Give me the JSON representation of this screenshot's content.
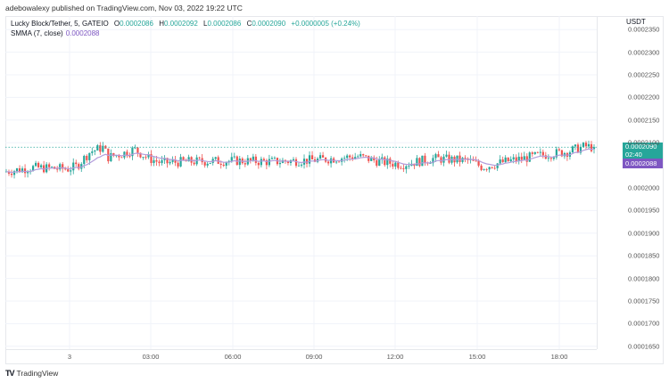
{
  "publisher_line": "adebowalexy published on TradingView.com, Nov 03, 2022 19:22 UTC",
  "legend": {
    "symbol": "Lucky Block/Tether, 5, GATEIO",
    "open_label": "O",
    "open": "0.0002086",
    "high_label": "H",
    "high": "0.0002092",
    "low_label": "L",
    "low": "0.0002086",
    "close_label": "C",
    "close": "0.0002090",
    "change": "+0.0000005 (+0.24%)",
    "indicator": "SMMA (7, close)",
    "indicator_value": "0.0002088"
  },
  "price_axis": {
    "unit": "USDT",
    "labels": [
      "0.0002350",
      "0.0002300",
      "0.0002250",
      "0.0002200",
      "0.0002150",
      "0.0002100",
      "0.0002000",
      "0.0001950",
      "0.0001900",
      "0.0001850",
      "0.0001800",
      "0.0001750",
      "0.0001700",
      "0.0001650"
    ],
    "close_badge": "0.0002090",
    "countdown": "02:40",
    "smma_badge": "0.0002088"
  },
  "time_axis": {
    "labels": [
      "3",
      "03:00",
      "06:00",
      "09:00",
      "12:00",
      "15:00",
      "18:00"
    ]
  },
  "footer": {
    "brand": "TradingView",
    "logo": "TV"
  },
  "colors": {
    "up": "#26a69a",
    "down": "#ef5350",
    "smma": "#b39ddb",
    "close_line": "#26a69a",
    "grid": "#f0f3fa"
  },
  "chart_data": {
    "type": "candlestick",
    "title": "Lucky Block/Tether, 5, GATEIO",
    "xlabel": "",
    "ylabel": "USDT",
    "ylim": [
      0.000164,
      0.000236
    ],
    "x_ticks": [
      "3",
      "03:00",
      "06:00",
      "09:00",
      "12:00",
      "15:00",
      "18:00"
    ],
    "y_ticks": [
      0.000165,
      0.00017,
      0.000175,
      0.00018,
      0.000185,
      0.00019,
      0.000195,
      0.0002,
      0.000205,
      0.00021,
      0.000215,
      0.00022,
      0.000225,
      0.00023,
      0.000235
    ],
    "grid": true,
    "last": {
      "open": 0.0002086,
      "high": 0.0002092,
      "low": 0.0002086,
      "close": 0.000209,
      "change": 5e-07,
      "change_pct": 0.24
    },
    "smma": {
      "period": 7,
      "source": "close",
      "last": 0.0002088
    },
    "approx_series": {
      "description": "Approximate closes read from pixel positions, ~5-min candles",
      "segments": [
        {
          "time": "00:00-01:00",
          "range": [
            0.000203,
            0.000205
          ]
        },
        {
          "time": "01:00-02:00",
          "range": [
            0.000206,
            0.0002098
          ]
        },
        {
          "time": "02:00-03:00",
          "range": [
            0.000205,
            0.000209
          ]
        },
        {
          "time": "03:00-09:00",
          "range": [
            0.000204,
            0.000207
          ]
        },
        {
          "time": "09:00-12:00",
          "range": [
            0.0002045,
            0.0002075
          ]
        },
        {
          "time": "12:00-15:00",
          "range": [
            0.0002035,
            0.0002065
          ]
        },
        {
          "time": "15:00-18:00",
          "range": [
            0.000204,
            0.000208
          ]
        },
        {
          "time": "18:00-19:20",
          "range": [
            0.0002075,
            0.0002102
          ]
        }
      ]
    }
  }
}
